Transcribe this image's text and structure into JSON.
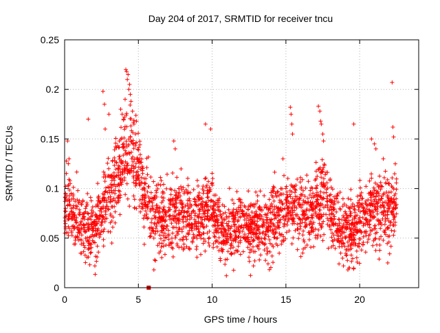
{
  "chart_data": {
    "type": "scatter",
    "title": "Day 204 of 2017, SRMTID for receiver tncu",
    "xlabel": "GPS time / hours",
    "ylabel": "SRMTID / TECUs",
    "xlim": [
      0,
      24
    ],
    "ylim": [
      0,
      0.25
    ],
    "x_ticks": [
      0,
      5,
      10,
      15,
      20
    ],
    "x_tick_labels": [
      "0",
      "5",
      "10",
      "15",
      "20"
    ],
    "y_ticks": [
      0,
      0.05,
      0.1,
      0.15,
      0.2,
      0.25
    ],
    "y_tick_labels": [
      "0",
      "0.05",
      "0.1",
      "0.15",
      "0.2",
      "0.25"
    ],
    "grid": true,
    "marker": "+",
    "marker_color": "#ff0000",
    "envelope": {
      "note": "approximate mean level of the dense SRMTID point cloud (hour, TECU)",
      "x": [
        0,
        0.5,
        1,
        1.5,
        2,
        2.5,
        3,
        3.5,
        4,
        4.5,
        5,
        5.5,
        6,
        6.5,
        7,
        7.5,
        8,
        8.5,
        9,
        9.5,
        10,
        10.5,
        11,
        11.5,
        12,
        12.5,
        13,
        13.5,
        14,
        14.5,
        15,
        15.5,
        16,
        16.5,
        17,
        17.5,
        18,
        18.5,
        19,
        19.5,
        20,
        20.5,
        21,
        21.5,
        22,
        22.5
      ],
      "y": [
        0.085,
        0.075,
        0.065,
        0.06,
        0.058,
        0.075,
        0.095,
        0.11,
        0.13,
        0.14,
        0.12,
        0.09,
        0.075,
        0.07,
        0.072,
        0.075,
        0.072,
        0.07,
        0.07,
        0.075,
        0.08,
        0.06,
        0.055,
        0.058,
        0.06,
        0.062,
        0.06,
        0.062,
        0.065,
        0.07,
        0.075,
        0.078,
        0.072,
        0.075,
        0.085,
        0.09,
        0.075,
        0.06,
        0.055,
        0.058,
        0.065,
        0.075,
        0.08,
        0.075,
        0.08,
        0.085
      ],
      "spread": 0.025
    },
    "highlights": [
      {
        "x": 0.2,
        "y": 0.148
      },
      {
        "x": 0.25,
        "y": 0.125
      },
      {
        "x": 0.3,
        "y": 0.13
      },
      {
        "x": 1.6,
        "y": 0.17
      },
      {
        "x": 2.05,
        "y": 0.022
      },
      {
        "x": 2.2,
        "y": 0.031
      },
      {
        "x": 2.6,
        "y": 0.198
      },
      {
        "x": 2.7,
        "y": 0.185
      },
      {
        "x": 2.75,
        "y": 0.16
      },
      {
        "x": 3.0,
        "y": 0.175
      },
      {
        "x": 3.2,
        "y": 0.045
      },
      {
        "x": 3.8,
        "y": 0.18
      },
      {
        "x": 3.9,
        "y": 0.175
      },
      {
        "x": 4.0,
        "y": 0.17
      },
      {
        "x": 4.1,
        "y": 0.19
      },
      {
        "x": 4.15,
        "y": 0.22
      },
      {
        "x": 4.2,
        "y": 0.218
      },
      {
        "x": 4.25,
        "y": 0.21
      },
      {
        "x": 4.3,
        "y": 0.215
      },
      {
        "x": 4.35,
        "y": 0.2
      },
      {
        "x": 4.4,
        "y": 0.205
      },
      {
        "x": 4.45,
        "y": 0.195
      },
      {
        "x": 4.5,
        "y": 0.188
      },
      {
        "x": 4.6,
        "y": 0.178
      },
      {
        "x": 4.7,
        "y": 0.165
      },
      {
        "x": 4.8,
        "y": 0.155
      },
      {
        "x": 5.1,
        "y": 0.13
      },
      {
        "x": 5.4,
        "y": 0.11
      },
      {
        "x": 6.05,
        "y": 0.018
      },
      {
        "x": 6.1,
        "y": 0.028
      },
      {
        "x": 6.4,
        "y": 0.035
      },
      {
        "x": 7.4,
        "y": 0.148
      },
      {
        "x": 7.5,
        "y": 0.14
      },
      {
        "x": 9.55,
        "y": 0.165
      },
      {
        "x": 9.9,
        "y": 0.16
      },
      {
        "x": 12.8,
        "y": 0.022
      },
      {
        "x": 13.2,
        "y": 0.028
      },
      {
        "x": 14.8,
        "y": 0.13
      },
      {
        "x": 15.3,
        "y": 0.182
      },
      {
        "x": 15.35,
        "y": 0.175
      },
      {
        "x": 15.4,
        "y": 0.165
      },
      {
        "x": 15.45,
        "y": 0.155
      },
      {
        "x": 17.2,
        "y": 0.183
      },
      {
        "x": 17.3,
        "y": 0.178
      },
      {
        "x": 17.35,
        "y": 0.168
      },
      {
        "x": 17.4,
        "y": 0.165
      },
      {
        "x": 17.5,
        "y": 0.155
      },
      {
        "x": 17.55,
        "y": 0.148
      },
      {
        "x": 18.6,
        "y": 0.024
      },
      {
        "x": 18.9,
        "y": 0.022
      },
      {
        "x": 19.2,
        "y": 0.018
      },
      {
        "x": 19.3,
        "y": 0.02
      },
      {
        "x": 19.6,
        "y": 0.165
      },
      {
        "x": 20.8,
        "y": 0.15
      },
      {
        "x": 21.0,
        "y": 0.145
      },
      {
        "x": 21.1,
        "y": 0.14
      },
      {
        "x": 21.6,
        "y": 0.13
      },
      {
        "x": 21.9,
        "y": 0.025
      },
      {
        "x": 22.2,
        "y": 0.207
      },
      {
        "x": 22.25,
        "y": 0.162
      },
      {
        "x": 22.3,
        "y": 0.152
      }
    ],
    "marker_square": {
      "x": 5.7,
      "y": 0.0,
      "color": "#cc0000"
    }
  }
}
